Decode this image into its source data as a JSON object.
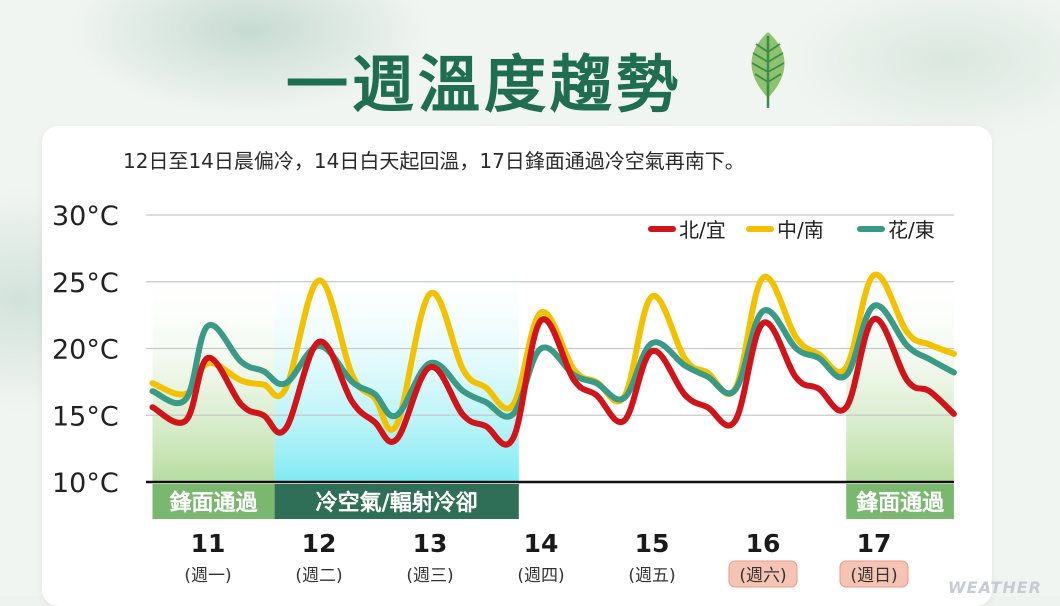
{
  "header": {
    "title": "一週溫度趨勢",
    "subtitle": "12日至14日晨偏冷，14日白天起回溫，17日鋒面通過冷空氣再南下。"
  },
  "watermark": "WEATHER",
  "colors": {
    "north": "#d0141a",
    "central_south": "#f2c200",
    "hua_dong": "#3a9a86",
    "front_band": "#79b86e",
    "cold_band": "#2f6e57",
    "weekend_badge": "#f6c4b4",
    "title": "#1f6e52"
  },
  "chart_data": {
    "type": "line",
    "y_unit": "°C",
    "ylim": [
      10,
      30
    ],
    "y_ticks": [
      "30°C",
      "25°C",
      "20°C",
      "15°C",
      "10°C"
    ],
    "grid": true,
    "legend_position": "top-right",
    "days": [
      {
        "date": "11",
        "weekday": "(週一)",
        "weekend": false
      },
      {
        "date": "12",
        "weekday": "(週二)",
        "weekend": false
      },
      {
        "date": "13",
        "weekday": "(週三)",
        "weekend": false
      },
      {
        "date": "14",
        "weekday": "(週四)",
        "weekend": false
      },
      {
        "date": "15",
        "weekday": "(週五)",
        "weekend": false
      },
      {
        "date": "16",
        "weekday": "(週六)",
        "weekend": true
      },
      {
        "date": "17",
        "weekday": "(週日)",
        "weekend": true
      }
    ],
    "x_day_range": [
      10.5,
      17.72
    ],
    "bands": [
      {
        "label": "鋒面通過",
        "from": 10.5,
        "to": 11.6,
        "kind": "front"
      },
      {
        "label": "冷空氣/輻射冷卻",
        "from": 11.6,
        "to": 13.8,
        "kind": "cold"
      },
      {
        "label": "鋒面通過",
        "from": 16.75,
        "to": 17.72,
        "kind": "front"
      }
    ],
    "series": [
      {
        "name": "北/宜",
        "color_key": "north",
        "points": [
          [
            10.5,
            15.6
          ],
          [
            10.8,
            14.6
          ],
          [
            11.0,
            19.3
          ],
          [
            11.3,
            15.8
          ],
          [
            11.5,
            15.0
          ],
          [
            11.7,
            14.0
          ],
          [
            12.0,
            20.5
          ],
          [
            12.3,
            16.0
          ],
          [
            12.5,
            14.5
          ],
          [
            12.7,
            13.2
          ],
          [
            13.0,
            18.6
          ],
          [
            13.3,
            15.0
          ],
          [
            13.5,
            14.2
          ],
          [
            13.75,
            13.3
          ],
          [
            14.0,
            22.1
          ],
          [
            14.3,
            17.6
          ],
          [
            14.5,
            16.5
          ],
          [
            14.75,
            14.6
          ],
          [
            15.0,
            19.8
          ],
          [
            15.3,
            16.5
          ],
          [
            15.5,
            15.6
          ],
          [
            15.75,
            14.6
          ],
          [
            16.0,
            21.9
          ],
          [
            16.3,
            17.8
          ],
          [
            16.5,
            17.0
          ],
          [
            16.75,
            15.6
          ],
          [
            17.0,
            22.2
          ],
          [
            17.3,
            17.6
          ],
          [
            17.5,
            16.8
          ],
          [
            17.72,
            15.1
          ]
        ]
      },
      {
        "name": "中/南",
        "color_key": "central_south",
        "points": [
          [
            10.5,
            17.4
          ],
          [
            10.8,
            16.6
          ],
          [
            11.0,
            18.9
          ],
          [
            11.3,
            17.6
          ],
          [
            11.5,
            17.3
          ],
          [
            11.7,
            17.0
          ],
          [
            12.0,
            25.1
          ],
          [
            12.3,
            18.0
          ],
          [
            12.5,
            16.3
          ],
          [
            12.7,
            14.3
          ],
          [
            13.0,
            24.1
          ],
          [
            13.3,
            18.4
          ],
          [
            13.5,
            17.1
          ],
          [
            13.75,
            15.8
          ],
          [
            14.0,
            22.7
          ],
          [
            14.3,
            18.4
          ],
          [
            14.5,
            17.5
          ],
          [
            14.75,
            16.4
          ],
          [
            15.0,
            23.9
          ],
          [
            15.3,
            19.2
          ],
          [
            15.5,
            18.2
          ],
          [
            15.75,
            17.0
          ],
          [
            16.0,
            25.3
          ],
          [
            16.3,
            20.8
          ],
          [
            16.5,
            19.6
          ],
          [
            16.75,
            18.6
          ],
          [
            17.0,
            25.5
          ],
          [
            17.3,
            21.2
          ],
          [
            17.5,
            20.3
          ],
          [
            17.72,
            19.6
          ]
        ]
      },
      {
        "name": "花/東",
        "color_key": "hua_dong",
        "points": [
          [
            10.5,
            16.8
          ],
          [
            10.8,
            16.2
          ],
          [
            11.0,
            21.7
          ],
          [
            11.3,
            19.0
          ],
          [
            11.5,
            18.3
          ],
          [
            11.7,
            17.4
          ],
          [
            12.0,
            20.2
          ],
          [
            12.3,
            17.5
          ],
          [
            12.5,
            16.6
          ],
          [
            12.7,
            15.0
          ],
          [
            13.0,
            18.9
          ],
          [
            13.3,
            16.8
          ],
          [
            13.5,
            16.0
          ],
          [
            13.75,
            15.1
          ],
          [
            14.0,
            20.0
          ],
          [
            14.3,
            18.0
          ],
          [
            14.5,
            17.4
          ],
          [
            14.75,
            16.3
          ],
          [
            15.0,
            20.4
          ],
          [
            15.3,
            18.7
          ],
          [
            15.5,
            17.9
          ],
          [
            15.75,
            16.9
          ],
          [
            16.0,
            22.8
          ],
          [
            16.3,
            20.0
          ],
          [
            16.5,
            19.3
          ],
          [
            16.75,
            18.0
          ],
          [
            17.0,
            23.2
          ],
          [
            17.3,
            20.2
          ],
          [
            17.5,
            19.2
          ],
          [
            17.72,
            18.2
          ]
        ]
      }
    ]
  }
}
